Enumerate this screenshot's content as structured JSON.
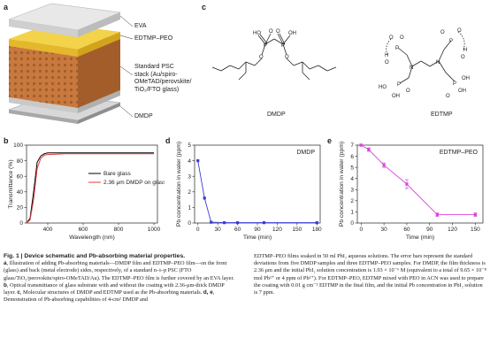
{
  "panels": {
    "a": "a",
    "b": "b",
    "c": "c",
    "d": "d",
    "e": "e"
  },
  "stack_labels": {
    "eva": "EVA",
    "edtmp_peo": "EDTMP–PEO",
    "psc_line1": "Standard PSC",
    "psc_line2": "stack (Au/spiro-",
    "psc_line3": "OMeTAD/perovskite/",
    "psc_line4": "TiO₂/FTO glass)",
    "dmdp": "DMDP"
  },
  "molecules": {
    "left": "DMDP",
    "right": "EDTMP"
  },
  "colors": {
    "glass": "#cfcfcf",
    "eva": "#e8e8e8",
    "edtmp": "#f2d34a",
    "perov": "#c8793e",
    "dmdp": "#bdbdbd",
    "bare": "#000000",
    "dmdp_line": "#e23b3b",
    "d_series": "#3a3ad6",
    "e_series": "#d946d9"
  },
  "chart_data": [
    {
      "type": "line",
      "panel": "b",
      "xlabel": "Wavelength (nm)",
      "ylabel": "Transmittance (%)",
      "xlim": [
        280,
        1020
      ],
      "ylim": [
        0,
        100
      ],
      "xticks": [
        400,
        600,
        800,
        1000
      ],
      "yticks": [
        0,
        20,
        40,
        60,
        80,
        100
      ],
      "legend": "right",
      "series": [
        {
          "name": "Bare glass",
          "x": [
            280,
            300,
            320,
            340,
            360,
            380,
            400,
            500,
            600,
            700,
            800,
            900,
            1000
          ],
          "values": [
            0,
            6,
            40,
            78,
            86,
            89,
            90,
            90,
            90,
            90,
            90,
            90,
            90
          ]
        },
        {
          "name": "2.36 μm DMDP on glass",
          "x": [
            280,
            300,
            320,
            340,
            360,
            380,
            400,
            500,
            600,
            700,
            800,
            900,
            1000
          ],
          "values": [
            0,
            4,
            30,
            70,
            83,
            87,
            88,
            89,
            89,
            89,
            89,
            89,
            89
          ]
        }
      ]
    },
    {
      "type": "line",
      "panel": "d",
      "title": "DMDP",
      "xlabel": "Time (min)",
      "ylabel": "Pb concentration in water (ppm)",
      "xlim": [
        -5,
        185
      ],
      "ylim": [
        0,
        5
      ],
      "xticks": [
        0,
        30,
        60,
        90,
        120,
        150,
        180
      ],
      "yticks": [
        0,
        1,
        2,
        3,
        4,
        5
      ],
      "x": [
        0,
        10,
        20,
        40,
        60,
        100,
        180
      ],
      "values": [
        4.0,
        1.6,
        0.05,
        0.02,
        0.02,
        0.02,
        0.02
      ],
      "err": [
        0.05,
        0.1,
        0.03,
        0.02,
        0.02,
        0.02,
        0.02
      ]
    },
    {
      "type": "line",
      "panel": "e",
      "title": "EDTMP–PEO",
      "xlabel": "Time (min)",
      "ylabel": "Pb concentration in water (ppm)",
      "xlim": [
        -5,
        160
      ],
      "ylim": [
        0,
        7
      ],
      "xticks": [
        0,
        30,
        60,
        90,
        120,
        150
      ],
      "yticks": [
        0,
        1,
        2,
        3,
        4,
        5,
        6,
        7
      ],
      "x": [
        0,
        10,
        30,
        60,
        100,
        150
      ],
      "values": [
        7.0,
        6.6,
        5.2,
        3.5,
        0.75,
        0.75
      ],
      "err": [
        0.1,
        0.15,
        0.2,
        0.4,
        0.15,
        0.15
      ]
    }
  ],
  "caption": {
    "title": "Fig. 1 | Device schematic and Pb-absorbing material properties.",
    "a_lbl": "a",
    "a_text": ", Illustration of adding Pb-absorbing materials—DMDP film and EDTMP–PEO film—on the front (glass) and back (metal electrode) sides, respectively, of a standard n–i–p PSC (FTO glass/TiO₂/perovskite/spiro-OMeTAD/Au). The EDTMP–PEO film is further covered by an EVA layer.",
    "b_lbl": "b",
    "b_text": ", Optical transmittance of glass substrate with and without the coating with 2.36-μm-thick DMDP layer.",
    "c_lbl": "c",
    "c_text": ", Molecular structures of DMDP and EDTMP used as the Pb-absorbing materials.",
    "de_lbl": "d, e",
    "de_text": ", Demonstration of Pb-absorbing capabilities of 4-cm² DMDP and",
    "right_text": "EDTMP–PEO films soaked in 50 ml PbI₂ aqueous solutions. The error bars represent the standard deviations from five DMDP samples and three EDTMP–PEO samples. For DMDP, the film thickness is 2.36 μm and the initial PbI₂ solution concentration is 1.93 × 10⁻⁶ M (equivalent to a total of 9.65 × 10⁻⁸ mol Pb²⁺ or 4 ppm of Pb²⁺). For EDTMP–PEO, EDTMP mixed with PEO in ACN was used to prepare the coating with 0.01 g cm⁻² EDTMP in the final film, and the initial Pb concentration in PbI₂ solution is 7 ppm."
  }
}
